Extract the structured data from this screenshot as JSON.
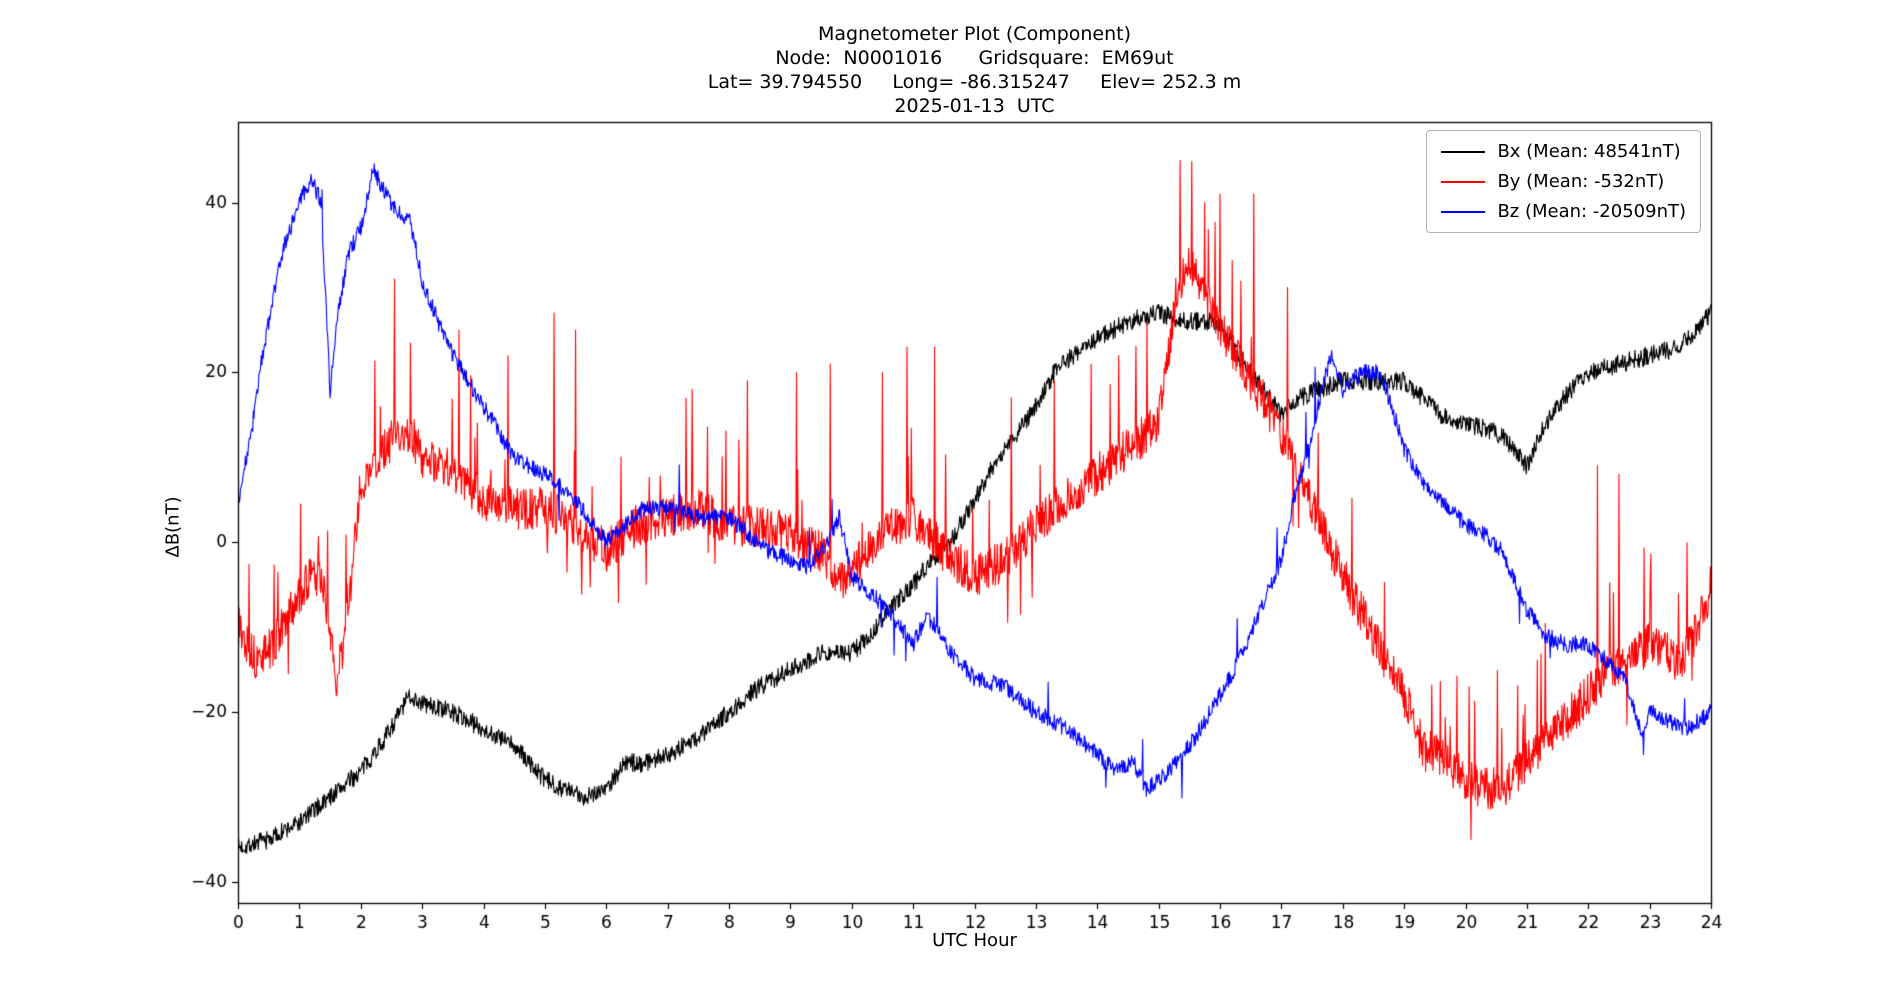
{
  "chart_data": {
    "type": "line",
    "title": "Magnetometer Plot (Component)",
    "title_lines": [
      "Magnetometer Plot (Component)",
      "Node:  N0001016      Gridsquare:  EM69ut",
      "Lat= 39.794550     Long= -86.315247     Elev= 252.3 m",
      "2025-01-13  UTC"
    ],
    "xlabel": "UTC Hour",
    "ylabel": "ΔB(nT)",
    "xlim": [
      0,
      24
    ],
    "ylim": [
      -42.5,
      49.5
    ],
    "x_ticks": [
      0,
      1,
      2,
      3,
      4,
      5,
      6,
      7,
      8,
      9,
      10,
      11,
      12,
      13,
      14,
      15,
      16,
      17,
      18,
      19,
      20,
      21,
      22,
      23,
      24
    ],
    "x_tick_labels": [
      "0",
      "1",
      "2",
      "3",
      "4",
      "5",
      "6",
      "7",
      "8",
      "9",
      "10",
      "11",
      "12",
      "13",
      "14",
      "15",
      "16",
      "17",
      "18",
      "19",
      "20",
      "21",
      "22",
      "23",
      "24"
    ],
    "y_ticks": [
      -40,
      -20,
      0,
      20,
      40
    ],
    "y_tick_labels": [
      "−40",
      "−20",
      "0",
      "20",
      "40"
    ],
    "grid": false,
    "legend_position": "upper right",
    "series": [
      {
        "name": "Bx (Mean: 48541nT)",
        "color": "#000000",
        "mean_nT": 48541,
        "seed": 7,
        "noise": 1.1,
        "spike_up_prob": 0,
        "spike_down_prob": 0,
        "spike_min": 0,
        "spike_max": 0,
        "spikes": [],
        "keypoints": [
          [
            0,
            -36
          ],
          [
            0.5,
            -35
          ],
          [
            1,
            -33
          ],
          [
            1.5,
            -30
          ],
          [
            2,
            -27
          ],
          [
            2.4,
            -23
          ],
          [
            2.8,
            -18
          ],
          [
            3,
            -19
          ],
          [
            3.5,
            -20
          ],
          [
            4,
            -22
          ],
          [
            4.5,
            -24
          ],
          [
            5,
            -28
          ],
          [
            5.3,
            -29
          ],
          [
            5.6,
            -30
          ],
          [
            6,
            -29
          ],
          [
            6.3,
            -26
          ],
          [
            6.6,
            -26
          ],
          [
            7,
            -25
          ],
          [
            7.5,
            -23
          ],
          [
            8,
            -20
          ],
          [
            8.5,
            -17
          ],
          [
            9,
            -15
          ],
          [
            9.5,
            -13
          ],
          [
            10,
            -13
          ],
          [
            10.3,
            -11
          ],
          [
            10.6,
            -8
          ],
          [
            11,
            -5
          ],
          [
            11.3,
            -2
          ],
          [
            11.6,
            0
          ],
          [
            12,
            5
          ],
          [
            12.3,
            9
          ],
          [
            12.6,
            12
          ],
          [
            13,
            16
          ],
          [
            13.3,
            20
          ],
          [
            13.6,
            22
          ],
          [
            14,
            24
          ],
          [
            14.5,
            26
          ],
          [
            15,
            27
          ],
          [
            15.5,
            26
          ],
          [
            16,
            26
          ],
          [
            16.3,
            22
          ],
          [
            16.6,
            19
          ],
          [
            17,
            15
          ],
          [
            17.3,
            17
          ],
          [
            17.6,
            18
          ],
          [
            18,
            19
          ],
          [
            18.5,
            19
          ],
          [
            19,
            19
          ],
          [
            19.3,
            17
          ],
          [
            19.6,
            15
          ],
          [
            20,
            14
          ],
          [
            20.5,
            13
          ],
          [
            20.8,
            11
          ],
          [
            21,
            9
          ],
          [
            21.3,
            14
          ],
          [
            21.6,
            17
          ],
          [
            22,
            20
          ],
          [
            22.5,
            21
          ],
          [
            23,
            22
          ],
          [
            23.5,
            23
          ],
          [
            24,
            27
          ]
        ]
      },
      {
        "name": "By (Mean: -532nT)",
        "color": "#ff0000",
        "mean_nT": -532,
        "seed": 13,
        "noise": 2.5,
        "spike_up_prob": 0.03,
        "spike_down_prob": 0.008,
        "spike_min": 4,
        "spike_max": 13,
        "spikes": [
          [
            1.6,
            -18
          ],
          [
            2.55,
            31
          ],
          [
            3.6,
            25
          ],
          [
            4.4,
            22
          ],
          [
            5.15,
            27
          ],
          [
            5.5,
            25
          ],
          [
            7.4,
            18
          ],
          [
            8.3,
            19
          ],
          [
            9.1,
            20
          ],
          [
            9.65,
            21
          ],
          [
            10.5,
            20
          ],
          [
            10.9,
            23
          ],
          [
            11.35,
            23
          ],
          [
            12.6,
            17
          ],
          [
            13.3,
            19
          ],
          [
            13.9,
            21
          ],
          [
            14.35,
            22
          ],
          [
            15.35,
            45
          ],
          [
            15.75,
            40
          ],
          [
            16.0,
            41
          ],
          [
            16.55,
            41
          ],
          [
            17.1,
            30
          ],
          [
            19.35,
            -27
          ],
          [
            20.4,
            -30
          ],
          [
            22.15,
            9
          ],
          [
            22.5,
            8
          ]
        ],
        "keypoints": [
          [
            0,
            -10
          ],
          [
            0.3,
            -14
          ],
          [
            0.6,
            -12
          ],
          [
            1,
            -6
          ],
          [
            1.2,
            -4
          ],
          [
            1.4,
            -5
          ],
          [
            1.6,
            -17
          ],
          [
            1.8,
            -8
          ],
          [
            2,
            7
          ],
          [
            2.2,
            9
          ],
          [
            2.5,
            12
          ],
          [
            2.8,
            13
          ],
          [
            3,
            10
          ],
          [
            3.3,
            9
          ],
          [
            3.6,
            8
          ],
          [
            4,
            5
          ],
          [
            4.5,
            4
          ],
          [
            5,
            4
          ],
          [
            5.5,
            2
          ],
          [
            6,
            -1
          ],
          [
            6.5,
            2
          ],
          [
            7,
            3
          ],
          [
            7.5,
            4
          ],
          [
            8,
            2
          ],
          [
            8.5,
            2
          ],
          [
            9,
            1
          ],
          [
            9.5,
            -1
          ],
          [
            9.8,
            -5
          ],
          [
            10,
            -3
          ],
          [
            10.5,
            1
          ],
          [
            11,
            3
          ],
          [
            11.5,
            -1
          ],
          [
            12,
            -4
          ],
          [
            12.5,
            -2
          ],
          [
            13,
            2
          ],
          [
            13.5,
            5
          ],
          [
            14,
            8
          ],
          [
            14.5,
            11
          ],
          [
            15,
            14
          ],
          [
            15.3,
            30
          ],
          [
            15.5,
            33
          ],
          [
            15.8,
            28
          ],
          [
            16,
            25
          ],
          [
            16.3,
            22
          ],
          [
            16.6,
            18
          ],
          [
            17,
            13
          ],
          [
            17.3,
            8
          ],
          [
            17.6,
            3
          ],
          [
            18,
            -4
          ],
          [
            18.5,
            -11
          ],
          [
            19,
            -18
          ],
          [
            19.3,
            -24
          ],
          [
            19.6,
            -25
          ],
          [
            20,
            -28
          ],
          [
            20.3,
            -29
          ],
          [
            20.6,
            -29
          ],
          [
            21,
            -26
          ],
          [
            21.5,
            -22
          ],
          [
            22,
            -18
          ],
          [
            22.3,
            -15
          ],
          [
            22.6,
            -14
          ],
          [
            23,
            -12
          ],
          [
            23.5,
            -14
          ],
          [
            23.8,
            -10
          ],
          [
            24,
            -5
          ]
        ]
      },
      {
        "name": "Bz (Mean: -20509nT)",
        "color": "#0000ff",
        "mean_nT": -20509,
        "seed": 99,
        "noise": 1.0,
        "spike_up_prob": 0.004,
        "spike_down_prob": 0.004,
        "spike_min": 3,
        "spike_max": 6,
        "spikes": [
          [
            1.5,
            17
          ],
          [
            22.9,
            -25
          ]
        ],
        "keypoints": [
          [
            0,
            5
          ],
          [
            0.2,
            12
          ],
          [
            0.4,
            22
          ],
          [
            0.6,
            30
          ],
          [
            0.8,
            36
          ],
          [
            1,
            40
          ],
          [
            1.2,
            43
          ],
          [
            1.35,
            40
          ],
          [
            1.5,
            18
          ],
          [
            1.65,
            28
          ],
          [
            1.8,
            34
          ],
          [
            2,
            37
          ],
          [
            2.2,
            44
          ],
          [
            2.4,
            41
          ],
          [
            2.6,
            39
          ],
          [
            2.8,
            38
          ],
          [
            3,
            31
          ],
          [
            3.2,
            27
          ],
          [
            3.5,
            22
          ],
          [
            4,
            16
          ],
          [
            4.5,
            10
          ],
          [
            5,
            8
          ],
          [
            5.5,
            5
          ],
          [
            6,
            0
          ],
          [
            6.3,
            2
          ],
          [
            6.6,
            4
          ],
          [
            7,
            4
          ],
          [
            7.5,
            3
          ],
          [
            8,
            3
          ],
          [
            8.3,
            1
          ],
          [
            8.6,
            -1
          ],
          [
            9,
            -2
          ],
          [
            9.3,
            -3
          ],
          [
            9.6,
            0
          ],
          [
            9.8,
            3
          ],
          [
            10,
            -4
          ],
          [
            10.3,
            -6
          ],
          [
            10.6,
            -8
          ],
          [
            11,
            -12
          ],
          [
            11.2,
            -9
          ],
          [
            11.4,
            -10
          ],
          [
            11.6,
            -13
          ],
          [
            12,
            -16
          ],
          [
            12.5,
            -17
          ],
          [
            13,
            -20
          ],
          [
            13.5,
            -22
          ],
          [
            14,
            -25
          ],
          [
            14.3,
            -27
          ],
          [
            14.6,
            -26
          ],
          [
            14.8,
            -29
          ],
          [
            15,
            -28
          ],
          [
            15.3,
            -26
          ],
          [
            15.6,
            -23
          ],
          [
            16,
            -18
          ],
          [
            16.3,
            -14
          ],
          [
            16.6,
            -9
          ],
          [
            17,
            -2
          ],
          [
            17.2,
            5
          ],
          [
            17.4,
            10
          ],
          [
            17.6,
            16
          ],
          [
            17.8,
            22
          ],
          [
            18,
            18
          ],
          [
            18.3,
            20
          ],
          [
            18.6,
            20
          ],
          [
            18.8,
            16
          ],
          [
            19,
            11
          ],
          [
            19.3,
            7
          ],
          [
            19.6,
            5
          ],
          [
            20,
            2
          ],
          [
            20.3,
            1
          ],
          [
            20.6,
            -1
          ],
          [
            21,
            -8
          ],
          [
            21.3,
            -11
          ],
          [
            21.6,
            -12
          ],
          [
            22,
            -12
          ],
          [
            22.3,
            -14
          ],
          [
            22.6,
            -16
          ],
          [
            22.9,
            -23
          ],
          [
            23,
            -20
          ],
          [
            23.3,
            -21
          ],
          [
            23.6,
            -22
          ],
          [
            24,
            -20
          ]
        ]
      }
    ]
  }
}
